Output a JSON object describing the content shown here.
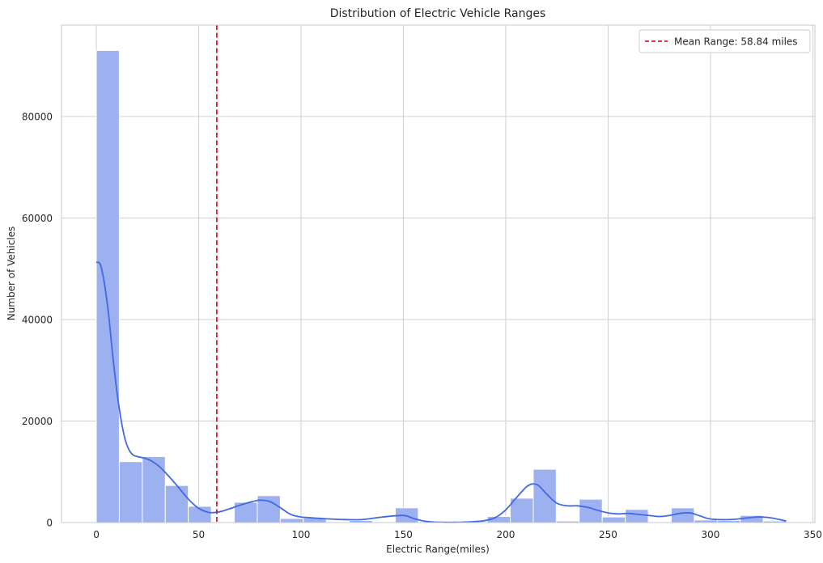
{
  "chart_data": {
    "type": "histogram",
    "title": "Distribution of Electric Vehicle Ranges",
    "xlabel": "Electric Range(miles)",
    "ylabel": "Number of Vehicles",
    "xlim": [
      -17,
      351
    ],
    "ylim": [
      0,
      98000
    ],
    "x_ticks": [
      0,
      50,
      100,
      150,
      200,
      250,
      300,
      350
    ],
    "y_ticks": [
      0,
      20000,
      40000,
      60000,
      80000
    ],
    "grid": true,
    "legend_position": "top-right",
    "bin_width": 11.23,
    "bins": [
      {
        "x0": 0.0,
        "value": 93000
      },
      {
        "x0": 11.23,
        "value": 12000
      },
      {
        "x0": 22.47,
        "value": 13000
      },
      {
        "x0": 33.7,
        "value": 7300
      },
      {
        "x0": 44.93,
        "value": 3200
      },
      {
        "x0": 56.17,
        "value": 0
      },
      {
        "x0": 67.4,
        "value": 4000
      },
      {
        "x0": 78.63,
        "value": 5300
      },
      {
        "x0": 89.87,
        "value": 800
      },
      {
        "x0": 101.1,
        "value": 900
      },
      {
        "x0": 112.33,
        "value": 0
      },
      {
        "x0": 123.57,
        "value": 400
      },
      {
        "x0": 134.8,
        "value": 0
      },
      {
        "x0": 146.03,
        "value": 2900
      },
      {
        "x0": 157.27,
        "value": 0
      },
      {
        "x0": 168.5,
        "value": 0
      },
      {
        "x0": 179.73,
        "value": 0
      },
      {
        "x0": 190.97,
        "value": 1200
      },
      {
        "x0": 202.2,
        "value": 4800
      },
      {
        "x0": 213.43,
        "value": 10500
      },
      {
        "x0": 224.67,
        "value": 300
      },
      {
        "x0": 235.9,
        "value": 4600
      },
      {
        "x0": 247.13,
        "value": 1100
      },
      {
        "x0": 258.37,
        "value": 2600
      },
      {
        "x0": 269.6,
        "value": 0
      },
      {
        "x0": 280.83,
        "value": 2900
      },
      {
        "x0": 292.07,
        "value": 500
      },
      {
        "x0": 303.3,
        "value": 400
      },
      {
        "x0": 314.53,
        "value": 1400
      },
      {
        "x0": 325.77,
        "value": 300
      }
    ],
    "kde": {
      "x": [
        0,
        2,
        4,
        6,
        8,
        10,
        12,
        14,
        16,
        18,
        20,
        25,
        30,
        35,
        40,
        45,
        50,
        55,
        60,
        65,
        70,
        75,
        80,
        85,
        90,
        95,
        100,
        110,
        120,
        130,
        140,
        150,
        155,
        160,
        165,
        170,
        175,
        180,
        185,
        190,
        195,
        200,
        205,
        210,
        213,
        216,
        220,
        225,
        230,
        235,
        240,
        245,
        250,
        255,
        260,
        265,
        270,
        275,
        280,
        285,
        290,
        295,
        300,
        310,
        320,
        325,
        330,
        337
      ],
      "y": [
        51300,
        50800,
        47000,
        41000,
        33000,
        26000,
        20500,
        16500,
        14300,
        13300,
        13000,
        12500,
        11300,
        9300,
        7000,
        4600,
        2800,
        2000,
        2100,
        2700,
        3400,
        4000,
        4400,
        4100,
        2900,
        1600,
        1100,
        800,
        600,
        600,
        1100,
        1400,
        800,
        300,
        100,
        50,
        50,
        100,
        200,
        400,
        1000,
        2500,
        4800,
        7000,
        7600,
        7300,
        5600,
        3800,
        3300,
        3300,
        3000,
        2400,
        1900,
        1700,
        1800,
        1600,
        1400,
        1200,
        1400,
        1800,
        1900,
        1300,
        700,
        600,
        1000,
        1100,
        900,
        300
      ]
    },
    "mean": {
      "value": 58.84,
      "label": "Mean Range: 58.84 miles"
    },
    "colors": {
      "bar": "#9db0ef",
      "bar_edge": "#ffffff",
      "kde": "#4169e1",
      "mean_line": "#e31a1c",
      "grid": "#d0d0d0",
      "frame": "#c8c8c8",
      "text": "#262626"
    }
  }
}
